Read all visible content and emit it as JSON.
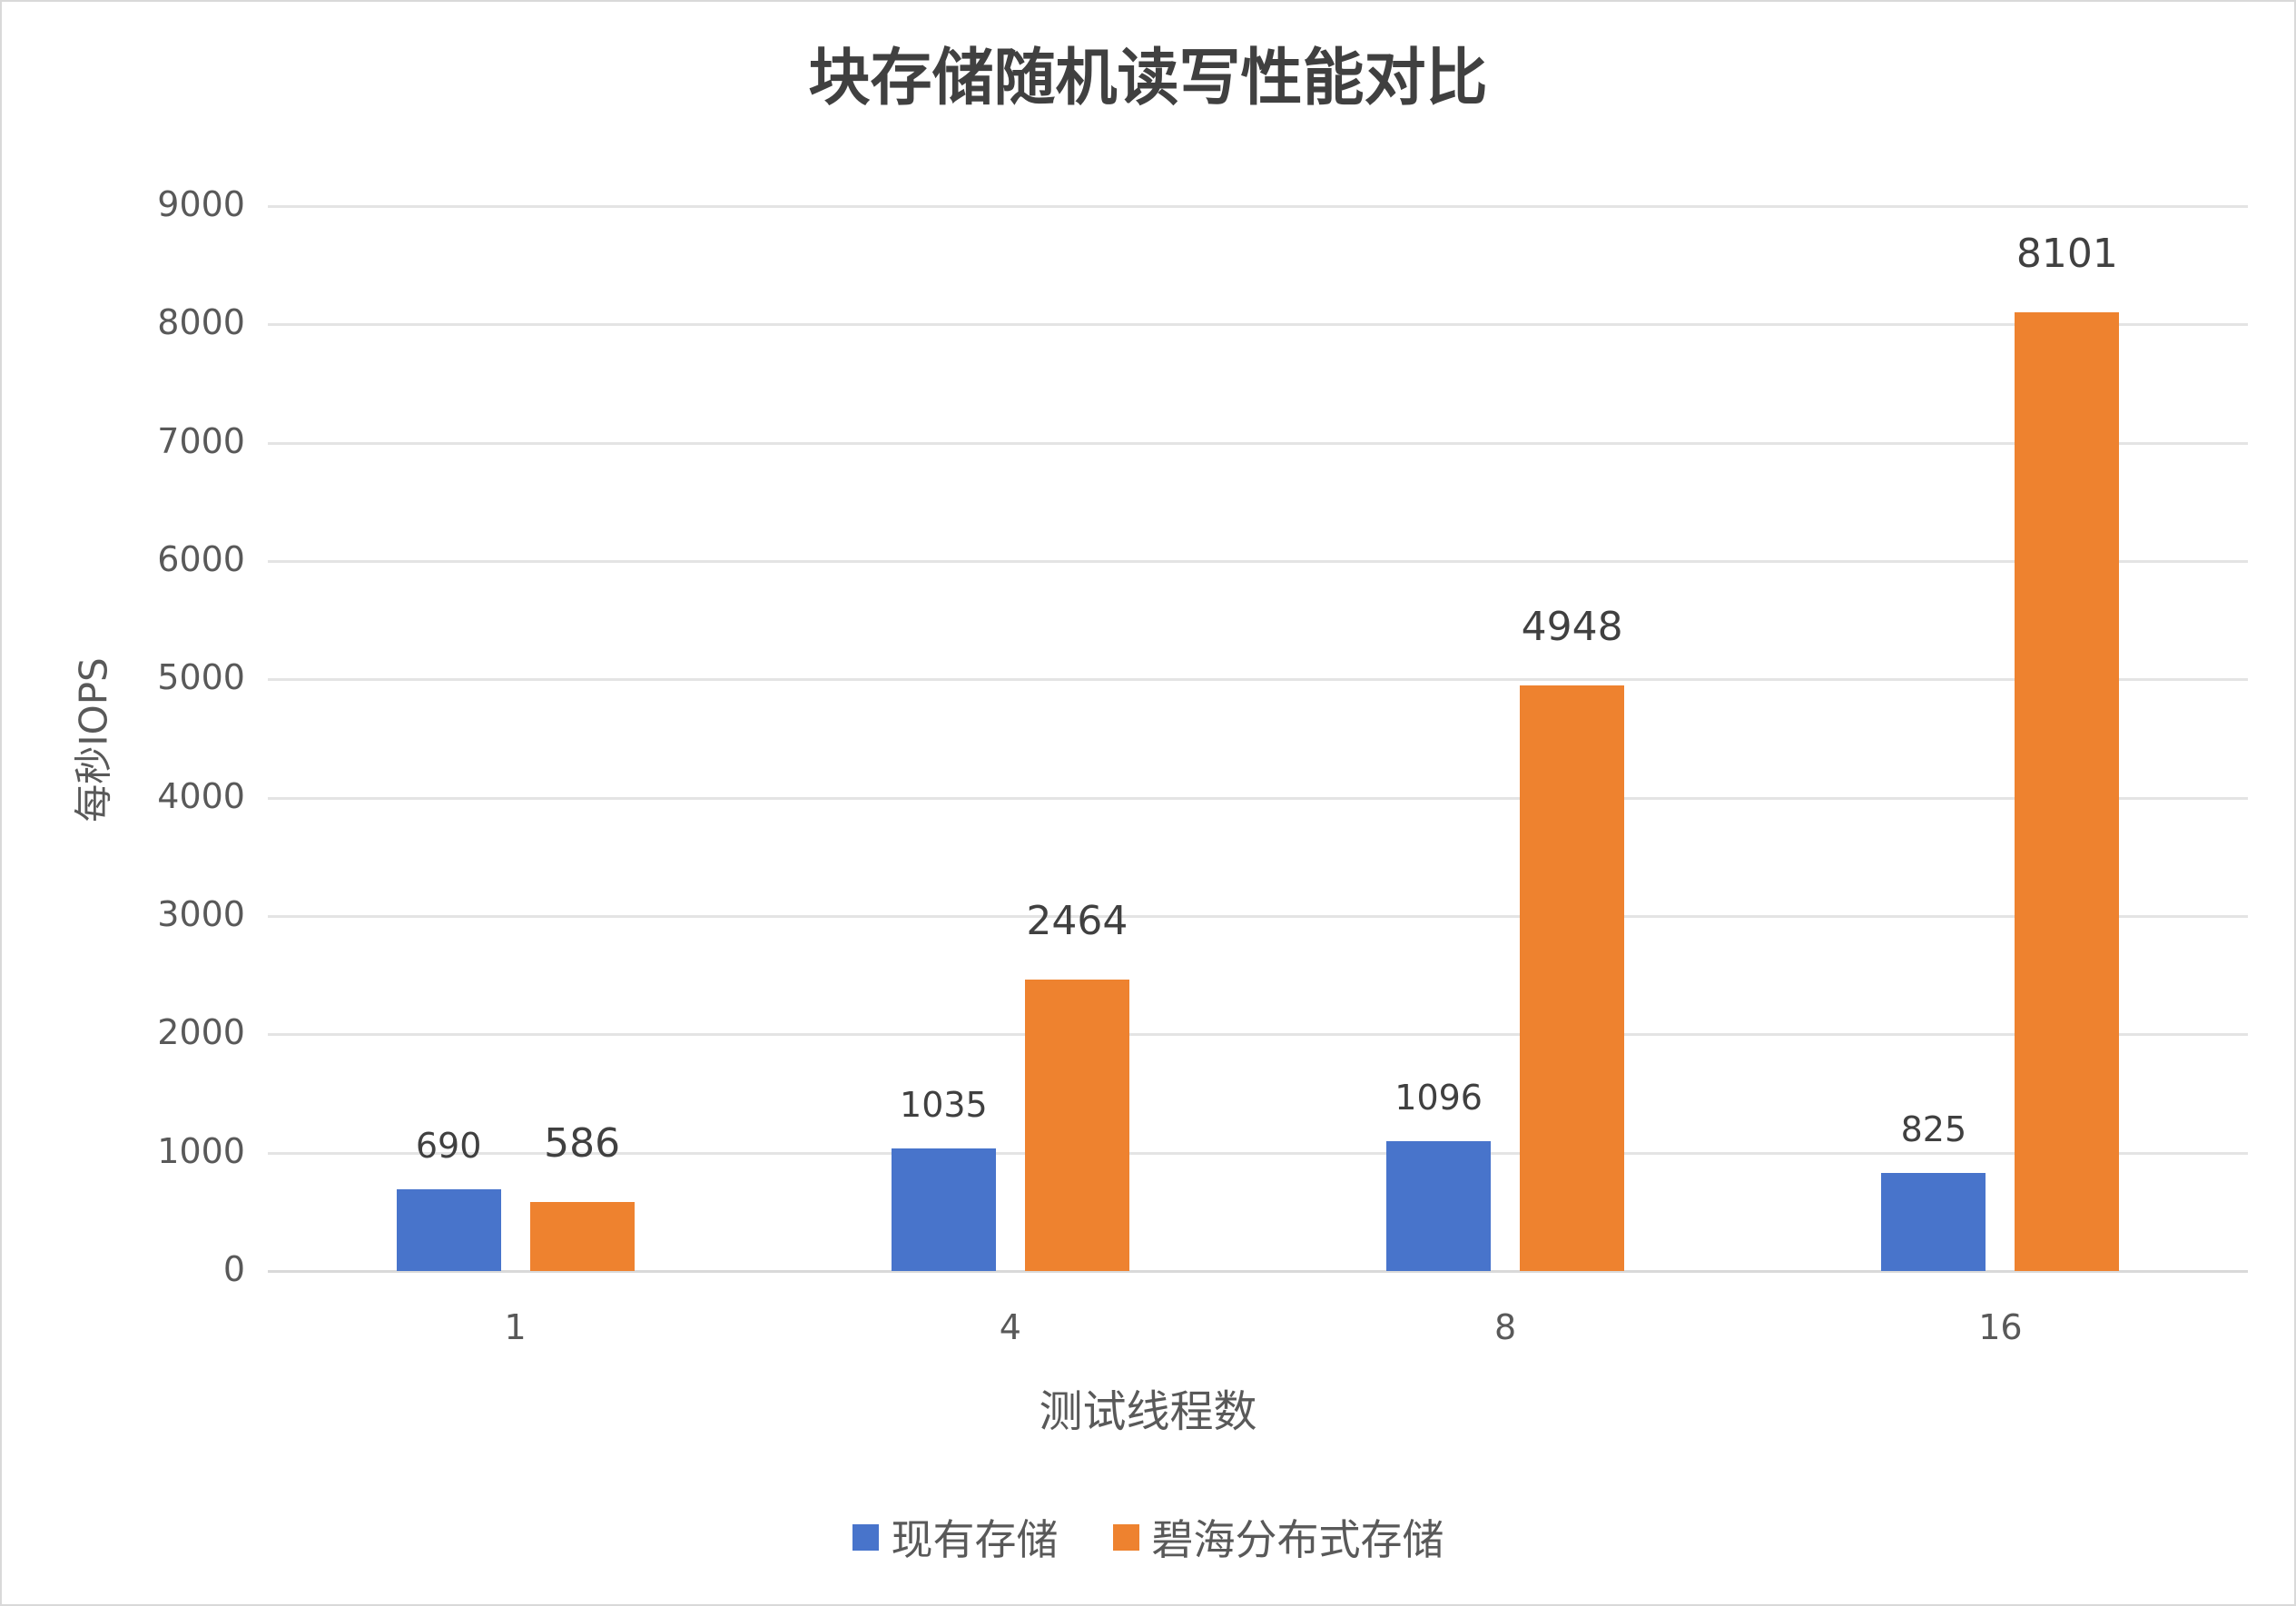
{
  "chart_data": {
    "type": "bar",
    "title": "块存储随机读写性能对比",
    "xlabel": "测试线程数",
    "ylabel": "每秒IOPS",
    "categories": [
      "1",
      "4",
      "8",
      "16"
    ],
    "series": [
      {
        "name": "现有存储",
        "color": "#4874CB",
        "values": [
          690,
          1035,
          1096,
          825
        ]
      },
      {
        "name": "碧海分布式存储",
        "color": "#EE822F",
        "values": [
          586,
          2464,
          4948,
          8101
        ]
      }
    ],
    "ylim": [
      0,
      9000
    ],
    "yticks": [
      "0",
      "1000",
      "2000",
      "3000",
      "4000",
      "5000",
      "6000",
      "7000",
      "8000",
      "9000"
    ],
    "grid": true,
    "legend_position": "bottom"
  }
}
